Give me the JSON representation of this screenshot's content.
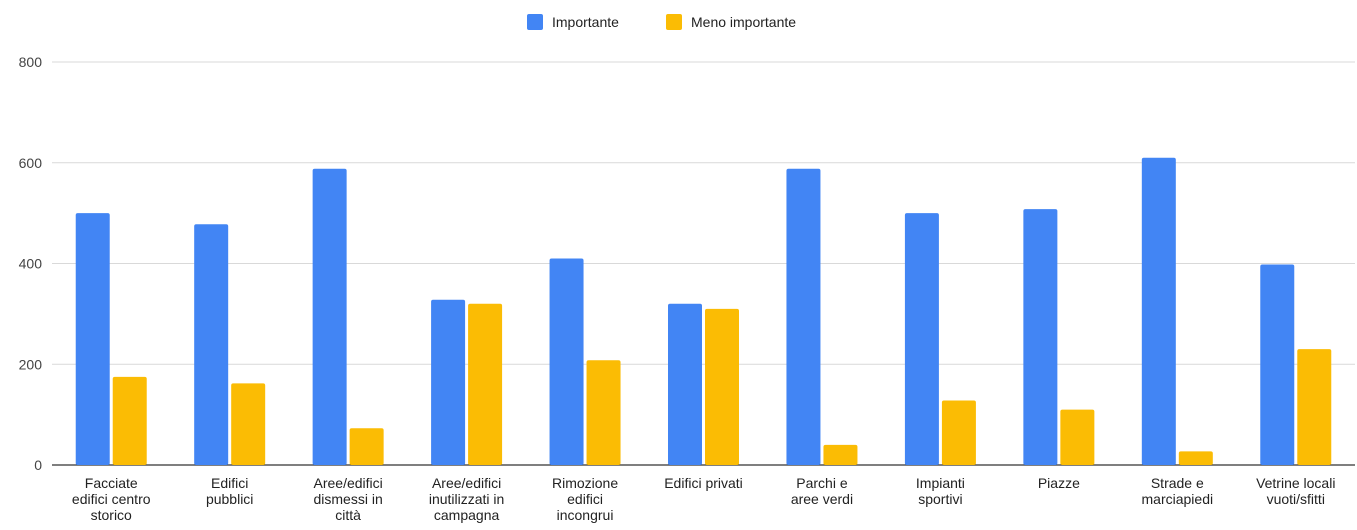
{
  "chart_data": {
    "type": "bar",
    "categories": [
      [
        "Facciate",
        "edifici centro",
        "storico"
      ],
      [
        "Edifici",
        "pubblici"
      ],
      [
        "Aree/edifici",
        "dismessi in",
        "città"
      ],
      [
        "Aree/edifici",
        "inutilizzati in",
        "campagna"
      ],
      [
        "Rimozione",
        "edifici",
        "incongrui"
      ],
      [
        "Edifici privati"
      ],
      [
        "Parchi e",
        "aree verdi"
      ],
      [
        "Impianti",
        "sportivi"
      ],
      [
        "Piazze"
      ],
      [
        "Strade e",
        "marciapiedi"
      ],
      [
        "Vetrine locali",
        "vuoti/sfitti"
      ]
    ],
    "series": [
      {
        "name": "Importante",
        "color": "#4285f4",
        "values": [
          500,
          478,
          588,
          328,
          410,
          320,
          588,
          500,
          508,
          610,
          398
        ]
      },
      {
        "name": "Meno importante",
        "color": "#fbbc04",
        "values": [
          175,
          162,
          73,
          320,
          208,
          310,
          40,
          128,
          110,
          27,
          230
        ]
      }
    ],
    "yticks": [
      "0",
      "200",
      "400",
      "600",
      "800"
    ],
    "ylim": [
      0,
      800
    ],
    "grid": true,
    "legend_position": "top-center"
  }
}
